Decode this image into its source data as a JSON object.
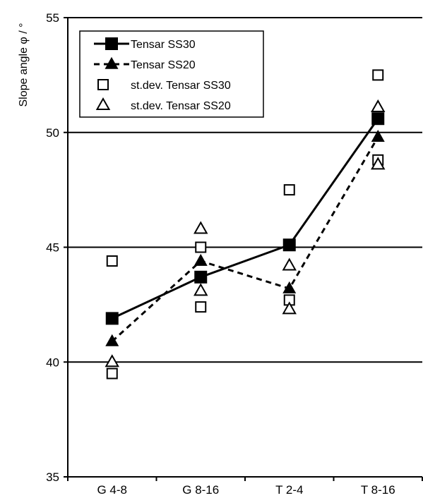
{
  "chart_data": {
    "type": "line",
    "categories": [
      "G 4-8",
      "G 8-16",
      "T 2-4",
      "T 8-16"
    ],
    "ylabel": "Slope angle φ / °",
    "ylim": [
      35,
      55
    ],
    "yticks": [
      35,
      40,
      45,
      50,
      55
    ],
    "grid": "horizontal",
    "legend_position": "top-left",
    "series": [
      {
        "name": "Tensar SS30",
        "marker": "filled-square",
        "line": "solid",
        "values": [
          41.9,
          43.7,
          45.1,
          50.6
        ]
      },
      {
        "name": "Tensar SS20",
        "marker": "filled-triangle",
        "line": "dashed",
        "values": [
          40.9,
          44.4,
          43.2,
          49.8
        ]
      },
      {
        "name": "st.dev. Tensar SS30",
        "marker": "open-square",
        "line": "none",
        "points": [
          [
            0,
            44.4
          ],
          [
            0,
            39.5
          ],
          [
            1,
            45.0
          ],
          [
            1,
            42.4
          ],
          [
            2,
            47.5
          ],
          [
            2,
            42.7
          ],
          [
            3,
            52.5
          ],
          [
            3,
            48.8
          ]
        ]
      },
      {
        "name": "st.dev. Tensar SS20",
        "marker": "open-triangle",
        "line": "none",
        "points": [
          [
            0,
            40.0
          ],
          [
            1,
            45.8
          ],
          [
            1,
            43.1
          ],
          [
            2,
            44.2
          ],
          [
            2,
            42.3
          ],
          [
            3,
            51.1
          ],
          [
            3,
            48.6
          ]
        ]
      }
    ],
    "color": "#000000"
  }
}
